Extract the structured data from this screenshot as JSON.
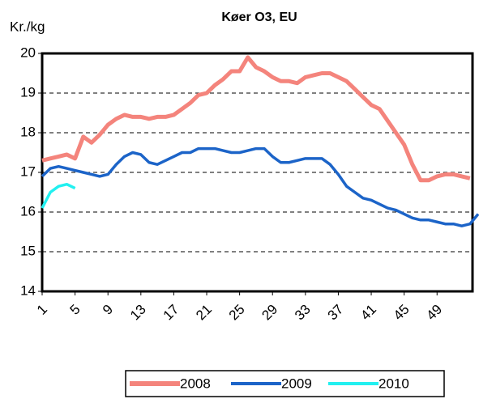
{
  "chart_data": {
    "type": "line",
    "title": "Køer O3, EU",
    "y_label": "Kr./kg",
    "x": [
      1,
      2,
      3,
      4,
      5,
      6,
      7,
      8,
      9,
      10,
      11,
      12,
      13,
      14,
      15,
      16,
      17,
      18,
      19,
      20,
      21,
      22,
      23,
      24,
      25,
      26,
      27,
      28,
      29,
      30,
      31,
      32,
      33,
      34,
      35,
      36,
      37,
      38,
      39,
      40,
      41,
      42,
      43,
      44,
      45,
      46,
      47,
      48,
      49,
      50,
      51,
      52,
      53,
      54
    ],
    "xlim": [
      1,
      54
    ],
    "xticks": [
      1,
      5,
      9,
      13,
      17,
      21,
      25,
      29,
      33,
      37,
      41,
      45,
      49
    ],
    "ylim": [
      14,
      20
    ],
    "yticks": [
      14,
      15,
      16,
      17,
      18,
      19,
      20
    ],
    "grid": true,
    "series": [
      {
        "name": "2008",
        "color": "#f4847c",
        "values": [
          17.3,
          17.35,
          17.4,
          17.45,
          17.35,
          17.9,
          17.75,
          17.95,
          18.2,
          18.35,
          18.45,
          18.4,
          18.4,
          18.35,
          18.4,
          18.4,
          18.45,
          18.6,
          18.75,
          18.95,
          19.0,
          19.2,
          19.35,
          19.55,
          19.55,
          19.9,
          19.65,
          19.55,
          19.4,
          19.3,
          19.3,
          19.25,
          19.4,
          19.45,
          19.5,
          19.5,
          19.4,
          19.3,
          19.1,
          18.9,
          18.7,
          18.6,
          18.3,
          18.0,
          17.7,
          17.2,
          16.8,
          16.8,
          16.9,
          16.95,
          16.95,
          16.9,
          16.85,
          null
        ]
      },
      {
        "name": "2009",
        "color": "#1c64c8",
        "values": [
          16.9,
          17.1,
          17.15,
          17.1,
          17.05,
          17.0,
          16.95,
          16.9,
          16.95,
          17.2,
          17.4,
          17.5,
          17.45,
          17.25,
          17.2,
          17.3,
          17.4,
          17.5,
          17.5,
          17.6,
          17.6,
          17.6,
          17.55,
          17.5,
          17.5,
          17.55,
          17.6,
          17.6,
          17.4,
          17.25,
          17.25,
          17.3,
          17.35,
          17.35,
          17.35,
          17.2,
          16.95,
          16.65,
          16.5,
          16.35,
          16.3,
          16.2,
          16.1,
          16.05,
          15.95,
          15.85,
          15.8,
          15.8,
          15.75,
          15.7,
          15.7,
          15.65,
          15.7,
          15.95
        ]
      },
      {
        "name": "2010",
        "color": "#22f0f0",
        "values": [
          16.1,
          16.5,
          16.65,
          16.7,
          16.6,
          null,
          null,
          null,
          null,
          null,
          null,
          null,
          null,
          null,
          null,
          null,
          null,
          null,
          null,
          null,
          null,
          null,
          null,
          null,
          null,
          null,
          null,
          null,
          null,
          null,
          null,
          null,
          null,
          null,
          null,
          null,
          null,
          null,
          null,
          null,
          null,
          null,
          null,
          null,
          null,
          null,
          null,
          null,
          null,
          null,
          null,
          null,
          null,
          null
        ]
      }
    ]
  }
}
